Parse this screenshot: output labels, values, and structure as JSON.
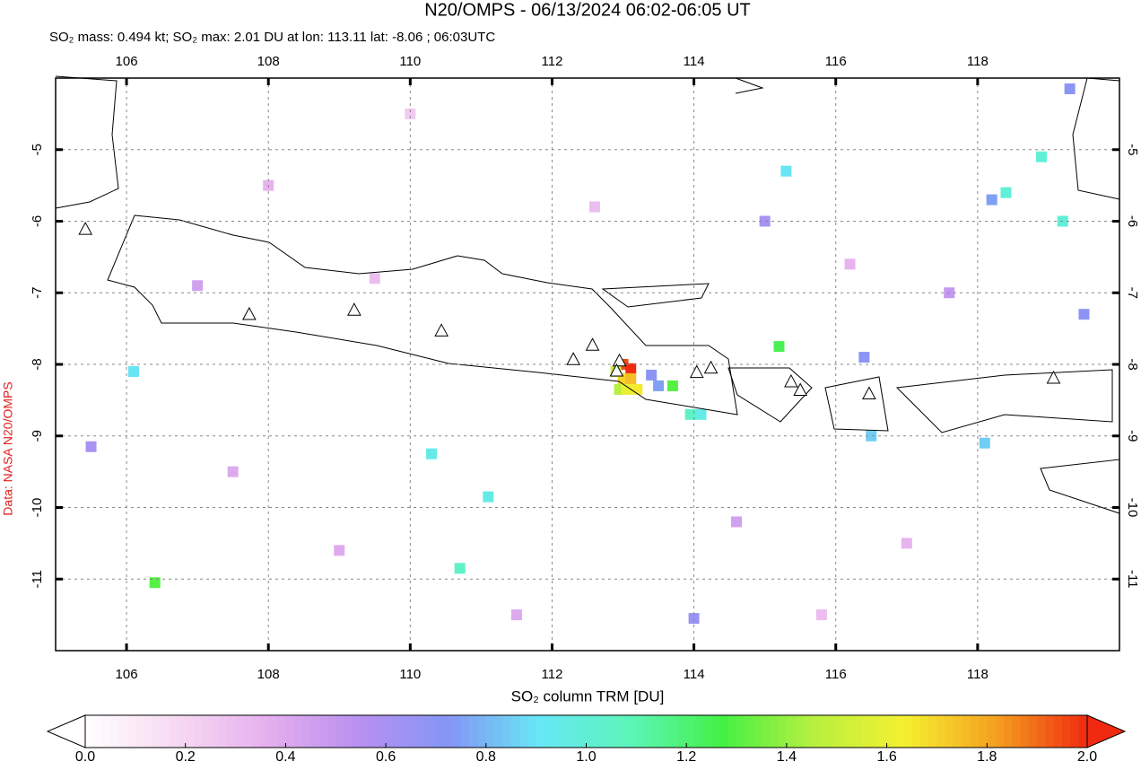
{
  "chart_data": {
    "type": "map",
    "title": "N20/OMPS - 06/13/2024 06:02-06:05 UT",
    "subtitle": "SO₂ mass: 0.494 kt; SO₂ max: 2.01 DU at lon: 113.11 lat: -8.06 ; 06:03UTC",
    "credit": "Data: NASA N20/OMPS",
    "xlim": [
      105,
      120
    ],
    "ylim": [
      -12,
      -4
    ],
    "xticks": [
      106,
      108,
      110,
      112,
      114,
      116,
      118
    ],
    "yticks": [
      -5,
      -6,
      -7,
      -8,
      -9,
      -10,
      -11
    ],
    "grid": true,
    "pixels": [
      [
        113.0,
        -8.0,
        1.95
      ],
      [
        113.11,
        -8.06,
        2.01
      ],
      [
        112.9,
        -8.1,
        1.5
      ],
      [
        113.0,
        -8.2,
        1.7
      ],
      [
        113.11,
        -8.2,
        1.75
      ],
      [
        112.95,
        -8.35,
        1.45
      ],
      [
        113.05,
        -8.35,
        1.6
      ],
      [
        113.2,
        -8.35,
        1.65
      ],
      [
        113.4,
        -8.15,
        0.7
      ],
      [
        113.5,
        -8.3,
        0.75
      ],
      [
        113.95,
        -8.7,
        1.05
      ],
      [
        114.1,
        -8.7,
        0.95
      ],
      [
        113.7,
        -8.3,
        1.3
      ],
      [
        115.2,
        -7.75,
        1.25
      ],
      [
        116.4,
        -7.9,
        0.7
      ],
      [
        115.0,
        -6.0,
        0.6
      ],
      [
        119.2,
        -6.0,
        1.0
      ],
      [
        118.4,
        -5.6,
        1.0
      ],
      [
        118.9,
        -5.1,
        1.0
      ],
      [
        106.4,
        -11.05,
        1.3
      ],
      [
        110.7,
        -10.85,
        1.05
      ],
      [
        111.1,
        -9.85,
        0.95
      ],
      [
        110.3,
        -9.25,
        0.95
      ],
      [
        105.5,
        -9.15,
        0.6
      ],
      [
        119.5,
        -7.3,
        0.7
      ],
      [
        114.0,
        -11.55,
        0.65
      ],
      [
        115.3,
        -5.3,
        0.9
      ],
      [
        106.1,
        -8.1,
        0.9
      ],
      [
        118.2,
        -5.7,
        0.75
      ],
      [
        119.3,
        -4.15,
        0.7
      ],
      [
        116.5,
        -9.0,
        0.85
      ],
      [
        118.1,
        -9.1,
        0.85
      ],
      [
        108.0,
        -5.5,
        0.35
      ],
      [
        109.5,
        -6.8,
        0.3
      ],
      [
        111.5,
        -11.5,
        0.4
      ],
      [
        117.0,
        -10.5,
        0.35
      ],
      [
        107.5,
        -9.5,
        0.4
      ],
      [
        115.8,
        -11.5,
        0.3
      ],
      [
        110.0,
        -4.5,
        0.25
      ],
      [
        112.6,
        -5.8,
        0.3
      ],
      [
        107.0,
        -6.9,
        0.45
      ],
      [
        117.6,
        -7.0,
        0.5
      ],
      [
        114.6,
        -10.2,
        0.45
      ],
      [
        109.0,
        -10.6,
        0.4
      ],
      [
        116.2,
        -6.6,
        0.35
      ]
    ],
    "volcanoes": [
      [
        105.42,
        -6.12
      ],
      [
        107.73,
        -7.31
      ],
      [
        109.21,
        -7.25
      ],
      [
        110.44,
        -7.54
      ],
      [
        112.3,
        -7.94
      ],
      [
        112.57,
        -7.74
      ],
      [
        112.95,
        -7.96
      ],
      [
        112.91,
        -8.1
      ],
      [
        114.04,
        -8.12
      ],
      [
        114.24,
        -8.06
      ],
      [
        115.37,
        -8.25
      ],
      [
        115.5,
        -8.37
      ],
      [
        116.47,
        -8.42
      ],
      [
        119.07,
        -8.2
      ]
    ],
    "colorbar": {
      "label": "SO₂ column TRM [DU]",
      "lim": [
        0,
        2
      ],
      "ticks": [
        {
          "value": 0,
          "label": "0.0"
        },
        {
          "value": 0.2,
          "label": "0.2"
        },
        {
          "value": 0.4,
          "label": "0.4"
        },
        {
          "value": 0.6,
          "label": "0.6"
        },
        {
          "value": 0.8,
          "label": "0.8"
        },
        {
          "value": 1,
          "label": "1.0"
        },
        {
          "value": 1.2,
          "label": "1.2"
        },
        {
          "value": 1.4,
          "label": "1.4"
        },
        {
          "value": 1.6,
          "label": "1.6"
        },
        {
          "value": 1.8,
          "label": "1.8"
        },
        {
          "value": 2,
          "label": "2.0"
        }
      ],
      "colors": [
        "#ffffff",
        "#f7d9f2",
        "#e6b0ee",
        "#b890f0",
        "#8496f5",
        "#66e8f5",
        "#5cf5b8",
        "#44f044",
        "#b8f040",
        "#f5f030",
        "#f5a020",
        "#f02a10"
      ]
    }
  }
}
